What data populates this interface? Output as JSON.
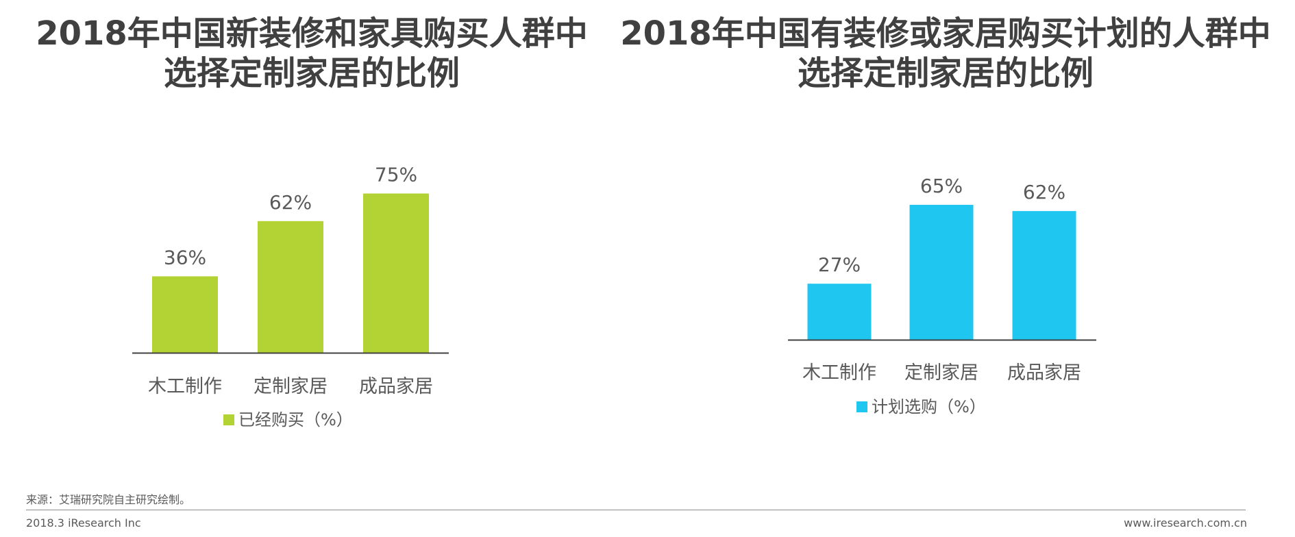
{
  "chart_data": [
    {
      "type": "bar",
      "title_lines": [
        "2018年中国新装修和家具购买人群中",
        "选择定制家居的比例"
      ],
      "categories": [
        "木工制作",
        "定制家居",
        "成品家居"
      ],
      "values": [
        36,
        62,
        75
      ],
      "value_labels": [
        "36%",
        "62%",
        "75%"
      ],
      "legend": "已经购买（%）",
      "legend_placement": "bottom",
      "color": "#B3D334",
      "ylim": [
        0,
        80
      ]
    },
    {
      "type": "bar",
      "title_lines": [
        "2018年中国有装修或家居购买计划的人群中",
        "选择定制家居的比例"
      ],
      "categories": [
        "木工制作",
        "定制家居",
        "成品家居"
      ],
      "values": [
        27,
        65,
        62
      ],
      "value_labels": [
        "27%",
        "65%",
        "62%"
      ],
      "legend": "计划选购（%）",
      "legend_placement": "bottom",
      "color": "#1FC6F0",
      "ylim": [
        0,
        80
      ]
    }
  ],
  "footer": {
    "source": "来源：艾瑞研究院自主研究绘制。",
    "left": "2018.3 iResearch Inc",
    "right": "www.iresearch.com.cn"
  }
}
